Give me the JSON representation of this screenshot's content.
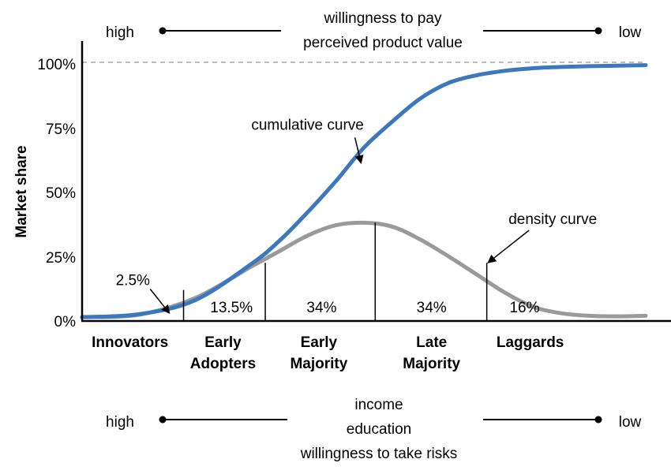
{
  "chart_data": {
    "type": "line",
    "ylabel": "Market share",
    "yticks": [
      "0%",
      "25%",
      "50%",
      "75%",
      "100%"
    ],
    "ylim": [
      0,
      100
    ],
    "reference_line": {
      "y": 100,
      "style": "dashed"
    },
    "series": [
      {
        "name": "cumulative curve",
        "color": "#3b78bd",
        "x": [
          0,
          10,
          20,
          30,
          35,
          40,
          45,
          50,
          55,
          60,
          65,
          70,
          75,
          80,
          85,
          90,
          95,
          100
        ],
        "y": [
          1.5,
          2.6,
          8,
          22,
          31,
          42,
          54,
          67,
          77,
          86,
          92,
          95,
          96.7,
          97.7,
          98.2,
          98.5,
          98.7,
          98.9
        ]
      },
      {
        "name": "density curve",
        "color": "#9a9a9a",
        "x": [
          0,
          10,
          20,
          30,
          35,
          40,
          45,
          50,
          55,
          60,
          65,
          70,
          75,
          80,
          85,
          90,
          95,
          100
        ],
        "y": [
          1.5,
          2.4,
          8.8,
          21,
          27,
          33,
          37,
          38,
          36.5,
          31.5,
          25,
          18,
          11,
          5.5,
          3,
          2,
          1.8,
          2
        ]
      }
    ],
    "dividers": [
      {
        "x": 18,
        "top": 12
      },
      {
        "x": 32.5,
        "top": 22.5
      },
      {
        "x": 52,
        "top": 38
      },
      {
        "x": 71.8,
        "top": 22.5
      }
    ],
    "segment_percents": [
      {
        "label": "2.5%",
        "x": 9,
        "y": 16
      },
      {
        "label": "13.5%",
        "x": 26.5,
        "y": 5.5
      },
      {
        "label": "34%",
        "x": 42.5,
        "y": 5.5
      },
      {
        "label": "34%",
        "x": 62,
        "y": 5.5
      },
      {
        "label": "16%",
        "x": 78.5,
        "y": 5.5
      }
    ],
    "categories": [
      {
        "lines": [
          "Innovators"
        ],
        "x": 8.5
      },
      {
        "lines": [
          "Early",
          "Adopters"
        ],
        "x": 25
      },
      {
        "lines": [
          "Early",
          "Majority"
        ],
        "x": 42
      },
      {
        "lines": [
          "Late",
          "Majority"
        ],
        "x": 62
      },
      {
        "lines": [
          "Laggards"
        ],
        "x": 79.5
      }
    ],
    "annotations": [
      {
        "text": "cumulative curve",
        "x": 40,
        "y": 74,
        "arrow_to": [
          49.5,
          61
        ]
      },
      {
        "text": "density curve",
        "x": 83.5,
        "y": 37.5,
        "arrow_to": [
          72,
          22.5
        ]
      },
      {
        "text": "",
        "x": 9,
        "y": 16,
        "arrow_to": [
          15.5,
          3
        ]
      }
    ],
    "top_scale": {
      "left": "high",
      "right": "low",
      "caption": [
        "willingness to pay",
        "perceived product value"
      ]
    },
    "bottom_scale": {
      "left": "high",
      "right": "low",
      "caption": [
        "income",
        "education",
        "willingness to take risks"
      ]
    }
  }
}
